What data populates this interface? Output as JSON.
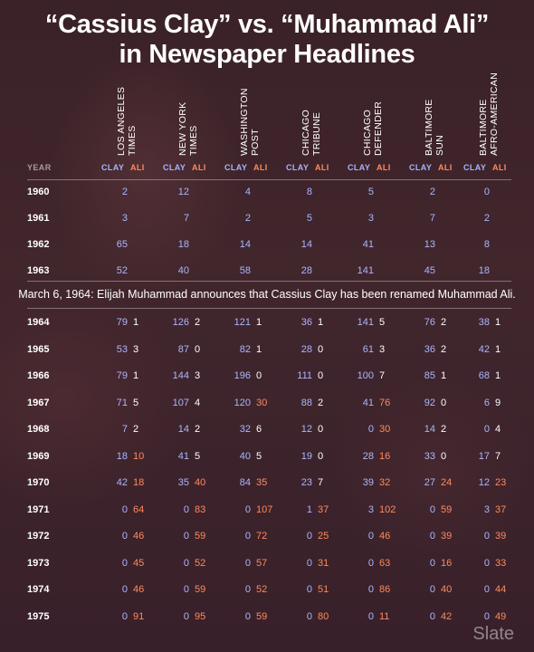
{
  "title": {
    "line1": "“Cassius Clay” vs. “Muhammad Ali”",
    "line2": "in Newspaper Headlines"
  },
  "header": {
    "year": "YEAR",
    "clay": "CLAY",
    "ali": "ALI"
  },
  "announcement": "March 6, 1964: Elijah Muhammad announces that Cassius Clay has been renamed Muhammad Ali.",
  "brand": "Slate",
  "colors": {
    "clay": "#aab7ff",
    "ali": "#ff8a5c",
    "background": "#3b2127"
  },
  "chart_data": {
    "type": "table",
    "title": "“Cassius Clay” vs. “Muhammad Ali” in Newspaper Headlines",
    "publications": [
      "LOS ANGELES\nTIMES",
      "NEW YORK\nTIMES",
      "WASHINGTON\nPOST",
      "CHICAGO\nTRIBUNE",
      "CHICAGO\nDEFENDER",
      "BALTIMORE\nSUN",
      "BALTIMORE\nAFRO-AMERICAN"
    ],
    "rows_pre": [
      {
        "year": "1960",
        "clay": [
          2,
          12,
          4,
          8,
          5,
          2,
          0
        ],
        "ali": [
          "",
          "",
          "",
          "",
          "",
          "",
          ""
        ]
      },
      {
        "year": "1961",
        "clay": [
          3,
          7,
          2,
          5,
          3,
          7,
          2
        ],
        "ali": [
          "",
          "",
          "",
          "",
          "",
          "",
          ""
        ]
      },
      {
        "year": "1962",
        "clay": [
          65,
          18,
          14,
          14,
          41,
          13,
          8
        ],
        "ali": [
          "",
          "",
          "",
          "",
          "",
          "",
          ""
        ]
      },
      {
        "year": "1963",
        "clay": [
          52,
          40,
          58,
          28,
          141,
          45,
          18
        ],
        "ali": [
          "",
          "",
          "",
          "",
          "",
          "",
          ""
        ]
      }
    ],
    "rows_post": [
      {
        "year": "1964",
        "clay": [
          79,
          126,
          121,
          36,
          141,
          76,
          38
        ],
        "ali": [
          1,
          2,
          1,
          1,
          5,
          2,
          1
        ]
      },
      {
        "year": "1965",
        "clay": [
          53,
          87,
          82,
          28,
          61,
          36,
          42
        ],
        "ali": [
          3,
          0,
          1,
          0,
          3,
          2,
          1
        ]
      },
      {
        "year": "1966",
        "clay": [
          79,
          144,
          196,
          111,
          100,
          85,
          68
        ],
        "ali": [
          1,
          3,
          0,
          0,
          7,
          1,
          1
        ]
      },
      {
        "year": "1967",
        "clay": [
          71,
          107,
          120,
          88,
          41,
          92,
          6
        ],
        "ali": [
          5,
          4,
          30,
          2,
          76,
          0,
          9
        ]
      },
      {
        "year": "1968",
        "clay": [
          7,
          14,
          32,
          12,
          0,
          14,
          0
        ],
        "ali": [
          2,
          2,
          6,
          0,
          30,
          2,
          4
        ]
      },
      {
        "year": "1969",
        "clay": [
          18,
          41,
          40,
          19,
          28,
          33,
          17
        ],
        "ali": [
          10,
          5,
          5,
          0,
          16,
          0,
          7
        ]
      },
      {
        "year": "1970",
        "clay": [
          42,
          35,
          84,
          23,
          39,
          27,
          12
        ],
        "ali": [
          18,
          40,
          35,
          7,
          32,
          24,
          23
        ]
      },
      {
        "year": "1971",
        "clay": [
          0,
          0,
          0,
          1,
          3,
          0,
          3
        ],
        "ali": [
          64,
          83,
          107,
          37,
          102,
          59,
          37
        ]
      },
      {
        "year": "1972",
        "clay": [
          0,
          0,
          0,
          0,
          0,
          0,
          0
        ],
        "ali": [
          46,
          59,
          72,
          25,
          46,
          39,
          39
        ]
      },
      {
        "year": "1973",
        "clay": [
          0,
          0,
          0,
          0,
          0,
          0,
          0
        ],
        "ali": [
          45,
          52,
          57,
          31,
          63,
          16,
          33
        ]
      },
      {
        "year": "1974",
        "clay": [
          0,
          0,
          0,
          0,
          0,
          0,
          0
        ],
        "ali": [
          46,
          59,
          52,
          51,
          86,
          40,
          44
        ]
      },
      {
        "year": "1975",
        "clay": [
          0,
          0,
          0,
          0,
          0,
          0,
          0
        ],
        "ali": [
          91,
          95,
          59,
          80,
          11,
          42,
          49
        ]
      }
    ]
  }
}
